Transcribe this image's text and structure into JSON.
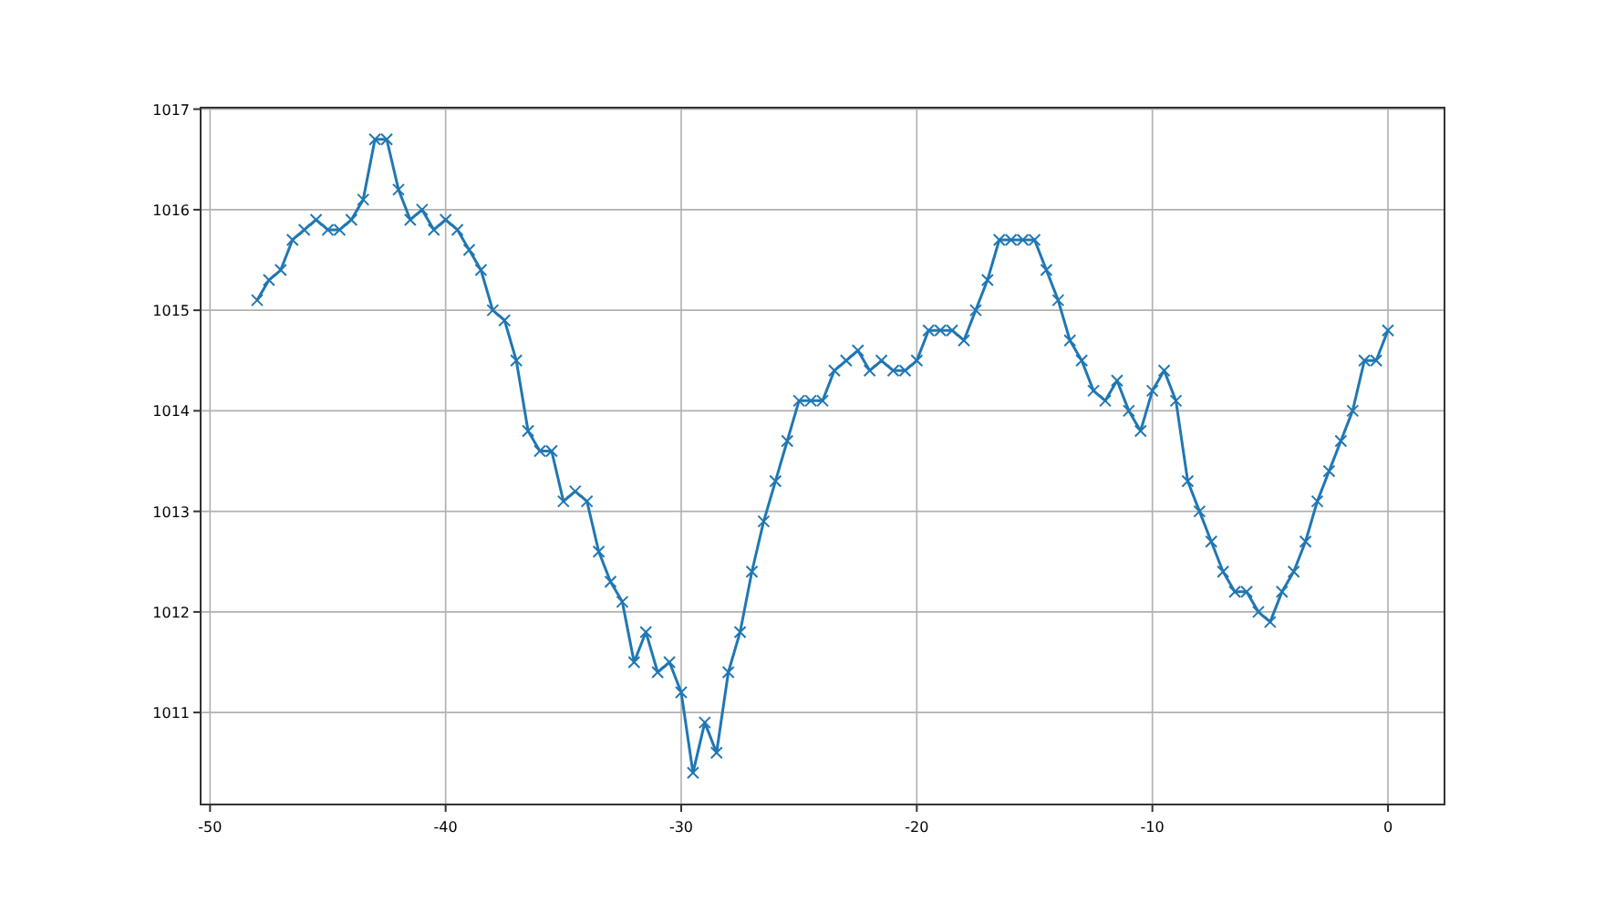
{
  "chart_data": {
    "type": "line",
    "x": [
      -48,
      -47.5,
      -47,
      -46.5,
      -46,
      -45.5,
      -45,
      -44.5,
      -44,
      -43.5,
      -43,
      -42.5,
      -42,
      -41.5,
      -41,
      -40.5,
      -40,
      -39.5,
      -39,
      -38.5,
      -38,
      -37.5,
      -37,
      -36.5,
      -36,
      -35.5,
      -35,
      -34.5,
      -34,
      -33.5,
      -33,
      -32.5,
      -32,
      -31.5,
      -31,
      -30.5,
      -30,
      -29.5,
      -29,
      -28.5,
      -28,
      -27.5,
      -27,
      -26.5,
      -26,
      -25.5,
      -25,
      -24.5,
      -24,
      -23.5,
      -23,
      -22.5,
      -22,
      -21.5,
      -21,
      -20.5,
      -20,
      -19.5,
      -19,
      -18.5,
      -18,
      -17.5,
      -17,
      -16.5,
      -16,
      -15.5,
      -15,
      -14.5,
      -14,
      -13.5,
      -13,
      -12.5,
      -12,
      -11.5,
      -11,
      -10.5,
      -10,
      -9.5,
      -9,
      -8.5,
      -8,
      -7.5,
      -7,
      -6.5,
      -6,
      -5.5,
      -5,
      -4.5,
      -4,
      -3.5,
      -3,
      -2.5,
      -2,
      -1.5,
      -1,
      -0.5,
      0
    ],
    "series": [
      {
        "color": "#1f77b4",
        "values": [
          1015.1,
          1015.3,
          1015.4,
          1015.7,
          1015.8,
          1015.9,
          1015.8,
          1015.8,
          1015.9,
          1016.1,
          1016.7,
          1016.7,
          1016.2,
          1015.9,
          1016.0,
          1015.8,
          1015.9,
          1015.8,
          1015.6,
          1015.4,
          1015.0,
          1014.9,
          1014.5,
          1013.8,
          1013.6,
          1013.6,
          1013.1,
          1013.2,
          1013.1,
          1012.6,
          1012.3,
          1012.1,
          1011.5,
          1011.8,
          1011.4,
          1011.5,
          1011.2,
          1010.4,
          1010.9,
          1010.6,
          1011.4,
          1011.8,
          1012.4,
          1012.9,
          1013.3,
          1013.7,
          1014.1,
          1014.1,
          1014.1,
          1014.4,
          1014.5,
          1014.6,
          1014.4,
          1014.5,
          1014.4,
          1014.4,
          1014.5,
          1014.8,
          1014.8,
          1014.8,
          1014.7,
          1015.0,
          1015.3,
          1015.7,
          1015.7,
          1015.7,
          1015.7,
          1015.4,
          1015.1,
          1014.7,
          1014.5,
          1014.2,
          1014.1,
          1014.3,
          1014.0,
          1013.8,
          1014.2,
          1014.4,
          1014.1,
          1013.3,
          1013.0,
          1012.7,
          1012.4,
          1012.2,
          1012.2,
          1012.0,
          1011.9,
          1012.2,
          1012.4,
          1012.7,
          1013.1,
          1013.4,
          1013.7,
          1014.0,
          1014.5,
          1014.5,
          1014.8
        ]
      }
    ],
    "xlim": [
      -50.4,
      2.4
    ],
    "ylim": [
      1010.085,
      1017.015
    ],
    "xticks": [
      -50,
      -40,
      -30,
      -20,
      -10,
      0
    ],
    "yticks": [
      1011,
      1012,
      1013,
      1014,
      1015,
      1016,
      1017
    ],
    "grid": true,
    "marker": "cross",
    "line_style": "solid"
  }
}
